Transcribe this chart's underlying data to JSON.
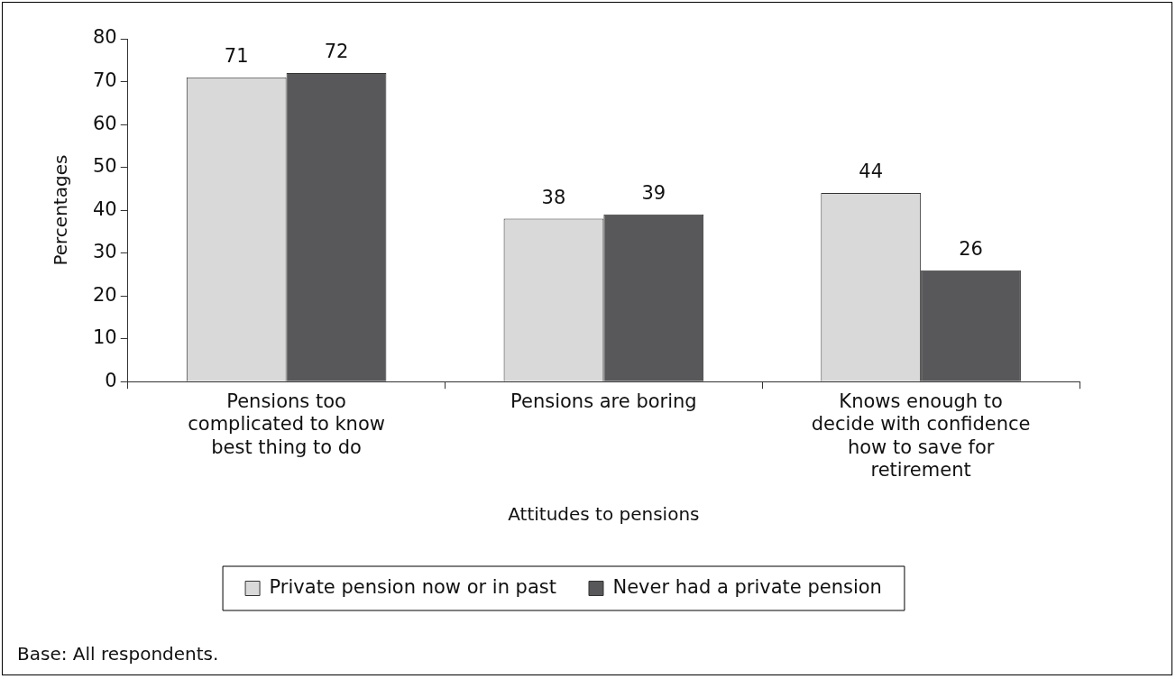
{
  "chart_data": {
    "type": "bar",
    "xlabel": "Attitudes to pensions",
    "ylabel": "Percentages",
    "categories": [
      "Pensions too complicated to know best thing to do",
      "Pensions are boring",
      "Knows enough to decide with confidence how to save for retirement"
    ],
    "series": [
      {
        "name": "Private pension now or in past",
        "color": "#d9d9d9",
        "values": [
          71,
          38,
          44
        ]
      },
      {
        "name": "Never had a private pension",
        "color": "#58585a",
        "values": [
          72,
          39,
          26
        ]
      }
    ],
    "ylim": [
      0,
      80
    ],
    "yticks": [
      0,
      10,
      20,
      30,
      40,
      50,
      60,
      70,
      80
    ],
    "grid": false,
    "legend": "bottom",
    "data_labels": true,
    "annotations": [
      "Base: All respondents."
    ]
  }
}
